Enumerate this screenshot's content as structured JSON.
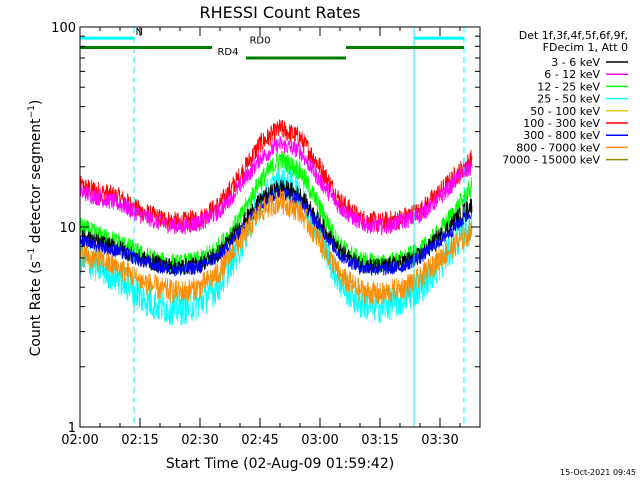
{
  "chart_data": {
    "type": "line",
    "title": "RHESSI Count Rates",
    "xlabel": "Start Time (02-Aug-09 01:59:42)",
    "ylabel": "Count Rate (s-1 detector segment-1)",
    "ylabel_parts": {
      "main": "Count Rate (s",
      "exp1": "−1",
      "mid": " detector segment",
      "exp2": "−1",
      "end": ")"
    },
    "x_unit": "minutes since 02:00",
    "xlim": [
      0,
      100
    ],
    "ylim": [
      1,
      100
    ],
    "y_scale": "log",
    "x_ticks": [
      {
        "label": "02:00",
        "value": 0
      },
      {
        "label": "02:15",
        "value": 15
      },
      {
        "label": "02:30",
        "value": 30
      },
      {
        "label": "02:45",
        "value": 45
      },
      {
        "label": "03:00",
        "value": 60
      },
      {
        "label": "03:15",
        "value": 75
      },
      {
        "label": "03:30",
        "value": 90
      }
    ],
    "y_ticks": [
      {
        "label": "1",
        "value": 1
      },
      {
        "label": "10",
        "value": 10
      },
      {
        "label": "100",
        "value": 100
      }
    ],
    "legend": {
      "placement": "right",
      "header": [
        "Det 1f,3f,4f,5f,6f,9f,",
        "FDecim 1, Att 0"
      ],
      "entries": [
        {
          "label": "3 - 6 keV",
          "color": "#000000"
        },
        {
          "label": "6 - 12 keV",
          "color": "#ff00ff"
        },
        {
          "label": "12 - 25 keV",
          "color": "#00ff00"
        },
        {
          "label": "25 - 50 keV",
          "color": "#00ffff"
        },
        {
          "label": "50 - 100 keV",
          "color": "#e6c800"
        },
        {
          "label": "100 - 300 keV",
          "color": "#ff0000"
        },
        {
          "label": "300 - 800 keV",
          "color": "#0000ff"
        },
        {
          "label": "800 - 7000 keV",
          "color": "#ff8c00"
        },
        {
          "label": "7000 - 15000 keV",
          "color": "#8b8b00"
        }
      ]
    },
    "series": [
      {
        "name": "100 - 300 keV",
        "color": "#ff0000",
        "noise": 0.12,
        "x": [
          0,
          5,
          10,
          15,
          20,
          25,
          30,
          35,
          40,
          45,
          50,
          55,
          60,
          65,
          70,
          75,
          80,
          85,
          90,
          95,
          98
        ],
        "y": [
          16,
          15,
          14,
          12,
          11,
          10.5,
          11,
          13,
          18,
          26,
          31,
          28,
          20,
          13.5,
          11,
          10.5,
          11,
          12,
          15,
          19,
          22
        ]
      },
      {
        "name": "6 - 12 keV",
        "color": "#ff00ff",
        "noise": 0.1,
        "x": [
          0,
          5,
          10,
          15,
          20,
          25,
          30,
          35,
          40,
          45,
          50,
          55,
          60,
          65,
          70,
          75,
          80,
          85,
          90,
          95,
          98
        ],
        "y": [
          15,
          14,
          13,
          11.5,
          10.5,
          10,
          10.5,
          12,
          16,
          22,
          26,
          24,
          17,
          12.5,
          10.5,
          10,
          10.5,
          11.5,
          14,
          18,
          20
        ]
      },
      {
        "name": "12 - 25 keV",
        "color": "#00ff00",
        "noise": 0.12,
        "x": [
          0,
          5,
          10,
          15,
          20,
          25,
          30,
          35,
          40,
          45,
          50,
          55,
          60,
          65,
          70,
          75,
          80,
          85,
          90,
          95,
          98
        ],
        "y": [
          10,
          9,
          8.3,
          7.3,
          6.7,
          6.5,
          6.8,
          8,
          11,
          17,
          22,
          19,
          12.5,
          8,
          6.8,
          6.5,
          6.8,
          7.5,
          9.5,
          13,
          16
        ]
      },
      {
        "name": "25 - 50 keV",
        "color": "#00ffff",
        "noise": 0.2,
        "x": [
          0,
          5,
          10,
          15,
          20,
          25,
          30,
          35,
          40,
          45,
          50,
          55,
          60,
          65,
          70,
          75,
          80,
          85,
          90,
          95,
          98
        ],
        "y": [
          7,
          6.3,
          5.5,
          4.5,
          4.0,
          3.9,
          4.2,
          5.2,
          8,
          13,
          17,
          15,
          9,
          5.3,
          4.2,
          4.0,
          4.3,
          5,
          6.5,
          9,
          10
        ]
      },
      {
        "name": "3 - 6 keV",
        "color": "#000000",
        "noise": 0.1,
        "x": [
          0,
          5,
          10,
          15,
          20,
          25,
          30,
          35,
          40,
          45,
          50,
          55,
          60,
          65,
          70,
          75,
          80,
          85,
          90,
          95,
          98
        ],
        "y": [
          9,
          8.3,
          7.8,
          7,
          6.5,
          6.3,
          6.5,
          7.5,
          10,
          13.5,
          16,
          14.5,
          10.5,
          7.5,
          6.5,
          6.3,
          6.6,
          7.2,
          9,
          11.5,
          13
        ]
      },
      {
        "name": "300 - 800 keV",
        "color": "#0000ff",
        "noise": 0.08,
        "x": [
          0,
          5,
          10,
          15,
          20,
          25,
          30,
          35,
          40,
          45,
          50,
          55,
          60,
          65,
          70,
          75,
          80,
          85,
          90,
          95,
          98
        ],
        "y": [
          8.5,
          8,
          7.5,
          6.8,
          6.3,
          6.1,
          6.3,
          7.2,
          9.5,
          13,
          15,
          13.5,
          10,
          7.2,
          6.3,
          6.1,
          6.3,
          7,
          8.5,
          10.5,
          12
        ]
      },
      {
        "name": "800 - 7000 keV",
        "color": "#ff8c00",
        "noise": 0.14,
        "x": [
          0,
          5,
          10,
          15,
          20,
          25,
          30,
          35,
          40,
          45,
          50,
          55,
          60,
          65,
          70,
          75,
          80,
          85,
          90,
          95,
          98
        ],
        "y": [
          7.3,
          6.8,
          6.2,
          5.4,
          4.9,
          4.7,
          5,
          6,
          8.5,
          12,
          13.5,
          12,
          8.5,
          5.7,
          4.8,
          4.6,
          4.9,
          5.5,
          7,
          8.5,
          9.5
        ]
      }
    ],
    "attenuator_lines": [
      {
        "label": "",
        "x_start": 0,
        "x_end": 13.5,
        "y": 88,
        "color": "#00ffff"
      },
      {
        "label": "",
        "x_start": 83.5,
        "x_end": 96,
        "y": 88,
        "color": "#00ffff"
      }
    ],
    "segment_labels": [
      {
        "label": "N",
        "x": 14.8,
        "y": 88,
        "color": "#00ffff"
      },
      {
        "label": "RD0",
        "x": 45,
        "y": 80,
        "color": "#008000"
      },
      {
        "label": "RD4",
        "x": 37,
        "y": 70,
        "color": "#008000"
      }
    ],
    "segments": [
      {
        "label": "",
        "x_start": 0,
        "x_end": 33,
        "y": 79,
        "color": "#008000"
      },
      {
        "label": "",
        "x_start": 66.5,
        "x_end": 96,
        "y": 79,
        "color": "#008000"
      },
      {
        "label": "",
        "x_start": 41.5,
        "x_end": 66.5,
        "y": 70,
        "color": "#008000"
      }
    ],
    "vertical_lines": [
      {
        "x": 0,
        "style": "solid",
        "color": "#00ffff"
      },
      {
        "x": 13.5,
        "style": "dashed",
        "color": "#00ffff"
      },
      {
        "x": 83.5,
        "style": "solid",
        "color": "#00ffff"
      },
      {
        "x": 96,
        "style": "dashed",
        "color": "#00ffff"
      }
    ],
    "footer_stamp": "15-Oct-2021 09:45",
    "grid": false
  }
}
